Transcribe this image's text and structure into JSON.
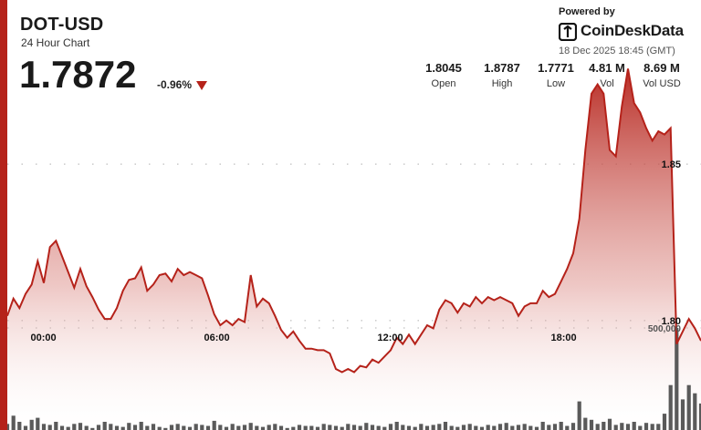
{
  "header": {
    "symbol": "DOT-USD",
    "subtitle": "24 Hour Chart",
    "price": "1.7872",
    "change": "-0.96%",
    "powered_by": "Powered by",
    "brand": "CoinDeskData",
    "timestamp": "18 Dec 2025 18:45 (GMT)"
  },
  "stats": [
    {
      "value": "1.8045",
      "label": "Open"
    },
    {
      "value": "1.8787",
      "label": "High"
    },
    {
      "value": "1.7771",
      "label": "Low"
    },
    {
      "value": "4.81 M",
      "label": "Vol"
    },
    {
      "value": "8.69 M",
      "label": "Vol USD"
    }
  ],
  "colors": {
    "accent": "#b5221a",
    "line": "#b5221a",
    "area_top": "#b5221a",
    "area_bottom": "#ffffff",
    "volume_bar": "#5a5a5a",
    "grid": "#b0b0b0"
  },
  "chart_data": {
    "type": "area",
    "x_ticks": [
      {
        "label": "00:00",
        "hour": 1.25
      },
      {
        "label": "06:00",
        "hour": 7.25
      },
      {
        "label": "12:00",
        "hour": 13.25
      },
      {
        "label": "18:00",
        "hour": 19.25
      }
    ],
    "y_ticks": [
      {
        "label": "1.85",
        "value": 1.85
      },
      {
        "label": "1.80",
        "value": 1.8
      }
    ],
    "ylim": [
      1.765,
      1.885
    ],
    "grid": "horizontal dotted",
    "volume_label": "500,000",
    "price_series": [
      1.8015,
      1.807,
      1.804,
      1.8085,
      1.8115,
      1.819,
      1.812,
      1.8235,
      1.8255,
      1.8205,
      1.8155,
      1.8105,
      1.8165,
      1.811,
      1.8075,
      1.8035,
      1.8005,
      1.8005,
      1.804,
      1.8095,
      1.813,
      1.8135,
      1.817,
      1.8095,
      1.8115,
      1.8145,
      1.815,
      1.8125,
      1.8165,
      1.8145,
      1.8155,
      1.8145,
      1.8135,
      1.808,
      1.802,
      1.7985,
      1.8,
      1.7985,
      1.8005,
      1.7995,
      1.8145,
      1.8045,
      1.807,
      1.8055,
      1.8015,
      1.797,
      1.7945,
      1.7965,
      1.7935,
      1.791,
      1.791,
      1.7905,
      1.7905,
      1.7895,
      1.7845,
      1.7835,
      1.7845,
      1.7835,
      1.7855,
      1.785,
      1.7875,
      1.7865,
      1.7885,
      1.7905,
      1.7945,
      1.7925,
      1.7955,
      1.7925,
      1.7955,
      1.7985,
      1.7975,
      1.8035,
      1.8065,
      1.8055,
      1.8025,
      1.8055,
      1.8045,
      1.8075,
      1.8055,
      1.8075,
      1.8065,
      1.8075,
      1.8065,
      1.8055,
      1.8015,
      1.8045,
      1.8055,
      1.8055,
      1.8095,
      1.8075,
      1.8085,
      1.8125,
      1.8165,
      1.8215,
      1.8325,
      1.8545,
      1.8725,
      1.8755,
      1.8725,
      1.8545,
      1.8525,
      1.8685,
      1.8805,
      1.8695,
      1.8665,
      1.8615,
      1.8575,
      1.8605,
      1.8595,
      1.8615,
      1.7925,
      1.7965,
      1.8005,
      1.7975,
      1.7935
    ],
    "volume_series": [
      30000,
      70000,
      40000,
      20000,
      50000,
      60000,
      30000,
      25000,
      40000,
      20000,
      15000,
      30000,
      35000,
      20000,
      10000,
      25000,
      40000,
      30000,
      20000,
      15000,
      35000,
      25000,
      40000,
      20000,
      30000,
      15000,
      10000,
      25000,
      30000,
      20000,
      15000,
      30000,
      25000,
      20000,
      45000,
      25000,
      15000,
      30000,
      20000,
      25000,
      35000,
      20000,
      15000,
      25000,
      30000,
      20000,
      10000,
      15000,
      25000,
      20000,
      20000,
      15000,
      30000,
      25000,
      20000,
      15000,
      30000,
      25000,
      20000,
      35000,
      25000,
      20000,
      15000,
      30000,
      40000,
      25000,
      20000,
      15000,
      30000,
      20000,
      25000,
      30000,
      40000,
      20000,
      15000,
      25000,
      30000,
      20000,
      15000,
      25000,
      20000,
      30000,
      35000,
      20000,
      25000,
      30000,
      20000,
      15000,
      40000,
      25000,
      30000,
      40000,
      20000,
      35000,
      140000,
      60000,
      50000,
      30000,
      40000,
      55000,
      25000,
      35000,
      30000,
      40000,
      20000,
      35000,
      30000,
      30000,
      80000,
      220000,
      500000,
      150000,
      220000,
      180000,
      130000
    ]
  }
}
